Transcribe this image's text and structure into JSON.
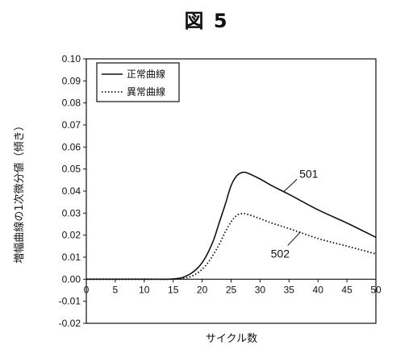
{
  "figure": {
    "title": "図 5"
  },
  "chart_data": {
    "type": "line",
    "title": "",
    "xlabel": "サイクル数",
    "ylabel": "増幅曲線の1次微分値（傾き）",
    "xlim": [
      0,
      50
    ],
    "ylim": [
      -0.02,
      0.1
    ],
    "x_ticks": [
      "0",
      "5",
      "10",
      "15",
      "20",
      "25",
      "30",
      "35",
      "40",
      "45",
      "50"
    ],
    "y_ticks": [
      "0.10",
      "0.09",
      "0.08",
      "0.07",
      "0.06",
      "0.05",
      "0.04",
      "0.03",
      "0.02",
      "0.01",
      "0.00",
      "-0.01",
      "-0.02"
    ],
    "x_tick_values": [
      0,
      5,
      10,
      15,
      20,
      25,
      30,
      35,
      40,
      45,
      50
    ],
    "y_tick_values": [
      0.1,
      0.09,
      0.08,
      0.07,
      0.06,
      0.05,
      0.04,
      0.03,
      0.02,
      0.01,
      0.0,
      -0.01,
      -0.02
    ],
    "legend_position": "top-left",
    "grid": false,
    "series": [
      {
        "name": "正常曲線",
        "style": "solid",
        "color": "#111111",
        "x": [
          0,
          5,
          10,
          14,
          16,
          17,
          18,
          19,
          20,
          21,
          22,
          23,
          24,
          25,
          26,
          27,
          28,
          30,
          32,
          35,
          40,
          45,
          50
        ],
        "values": [
          0,
          0,
          0,
          0,
          0.0004,
          0.0012,
          0.0025,
          0.0045,
          0.0075,
          0.012,
          0.018,
          0.026,
          0.034,
          0.0425,
          0.047,
          0.0485,
          0.048,
          0.0455,
          0.0425,
          0.0385,
          0.0315,
          0.0255,
          0.019
        ]
      },
      {
        "name": "異常曲線",
        "style": "dotted",
        "color": "#111111",
        "x": [
          0,
          5,
          10,
          15,
          17,
          18,
          19,
          20,
          21,
          22,
          23,
          24,
          25,
          26,
          27,
          28,
          30,
          32,
          35,
          40,
          45,
          50
        ],
        "values": [
          0,
          0,
          0,
          0,
          0.0005,
          0.0012,
          0.0025,
          0.0045,
          0.0075,
          0.0115,
          0.016,
          0.0215,
          0.026,
          0.029,
          0.0298,
          0.0293,
          0.0275,
          0.0255,
          0.023,
          0.0185,
          0.015,
          0.0115
        ]
      }
    ],
    "annotations": [
      {
        "text": "501",
        "series": "正常曲線",
        "x": 34,
        "y": 0.0395
      },
      {
        "text": "502",
        "series": "異常曲線",
        "x": 37,
        "y": 0.0215
      }
    ]
  }
}
